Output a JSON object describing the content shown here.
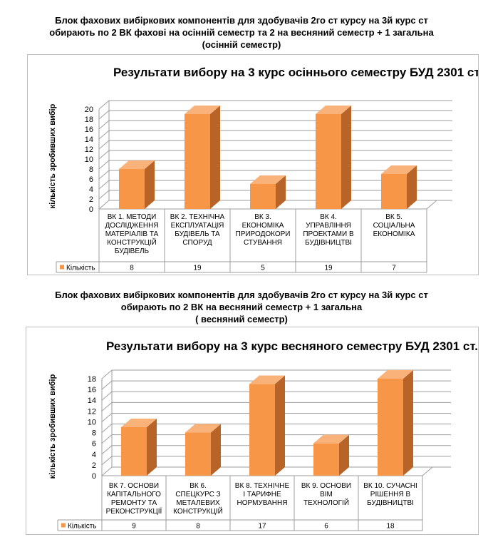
{
  "heading1": {
    "line1": "Блок фахових вибіркових компонентів для здобувачів 2го ст курсу на 3й курс  ст",
    "line2": "обирають по 2 ВК фахові на осінній семестр та 2 на весняний семестр + 1 загальна",
    "line3": "(осінній семестр)"
  },
  "heading2": {
    "line1": "Блок фахових вибіркових компонентів для здобувачів 2го ст курсу на 3й курс  ст",
    "line2": "обирають по 2 ВК  на весняний семестр + 1 загальна",
    "line3": "( весняний семестр)"
  },
  "colors": {
    "bar_front": "#f79646",
    "bar_side": "#b86428",
    "bar_top": "#f9b27a",
    "grid": "#9e9e9e",
    "table": "#9e9e9e"
  },
  "chart_data": [
    {
      "type": "bar",
      "title": "Результати вибору на 3 курс осіннього семестру БУД 2301 ст.",
      "ylabel": "кількість  зробивших  вибір",
      "ylim": [
        0,
        20
      ],
      "ytick_step": 2,
      "categories": [
        [
          "ВК 1. МЕТОДИ",
          "ДОСЛІДЖЕННЯ",
          "МАТЕРІАЛІВ ТА",
          "КОНСТРУКЦІЙ",
          "БУДІВЕЛЬ"
        ],
        [
          "ВК 2. ТЕХНІЧНА",
          "ЕКСПЛУАТАЦІЯ",
          "БУДІВЕЛЬ ТА",
          "СПОРУД"
        ],
        [
          "ВК 3.",
          "ЕКОНОМІКА",
          "ПРИРОДОКОРИ",
          "СТУВАННЯ"
        ],
        [
          "ВК 4.",
          "УПРАВЛІННЯ",
          "ПРОЕКТАМИ В",
          "БУДІВНИЦТВІ"
        ],
        [
          "ВК 5.",
          "СОЦІАЛЬНА",
          "ЕКОНОМІКА"
        ]
      ],
      "series": [
        {
          "name": "Кількість",
          "values": [
            8,
            19,
            5,
            19,
            7
          ]
        }
      ],
      "legend": "bottom-left (data table)",
      "grid": true
    },
    {
      "type": "bar",
      "title": "Результати вибору на 3 курс весняного семестру БУД 2301 ст.",
      "ylabel": "кількість  зробивших  вибір",
      "ylim": [
        0,
        18
      ],
      "ytick_step": 2,
      "categories": [
        [
          "ВК 7. ОСНОВИ",
          "КАПІТАЛЬНОГО",
          "РЕМОНТУ ТА",
          "РЕКОНСТРУКЦІЇ"
        ],
        [
          "ВК 6.",
          "СПЕЦКУРС З",
          "МЕТАЛЕВИХ",
          "КОНСТРУКЦІЙ"
        ],
        [
          "ВК 8. ТЕХНІЧНЕ",
          "І ТАРИФНЕ",
          "НОРМУВАННЯ"
        ],
        [
          "ВК 9. ОСНОВИ",
          "BIM",
          "ТЕХНОЛОГІЙ"
        ],
        [
          "ВК 10. СУЧАСНІ",
          "РІШЕННЯ В",
          "БУДІВНИЦТВІ"
        ]
      ],
      "series": [
        {
          "name": "Кількість",
          "values": [
            9,
            8,
            17,
            6,
            18
          ]
        }
      ],
      "legend": "bottom-left (data table)",
      "grid": true
    }
  ]
}
